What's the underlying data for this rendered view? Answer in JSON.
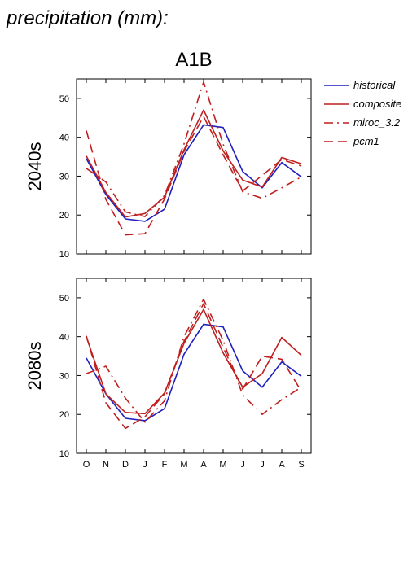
{
  "header": {
    "title": "precipitation (mm):"
  },
  "chart_data": {
    "type": "line",
    "title": "A1B",
    "categories": [
      "O",
      "N",
      "D",
      "J",
      "F",
      "M",
      "A",
      "M",
      "J",
      "J",
      "A",
      "S"
    ],
    "ylim": [
      10,
      55
    ],
    "yticks": [
      10,
      20,
      30,
      40,
      50
    ],
    "grid": false,
    "legend_position": "right",
    "legend": [
      {
        "name": "historical",
        "color": "#1f1fbf",
        "dash": "solid"
      },
      {
        "name": "composite",
        "color": "#bf1f1f",
        "dash": "solid"
      },
      {
        "name": "miroc_3.2",
        "color": "#bf1f1f",
        "dash": "dashdot"
      },
      {
        "name": "pcm1",
        "color": "#bf1f1f",
        "dash": "dashed"
      }
    ],
    "panels": [
      {
        "ylabel": "2040s",
        "series": [
          {
            "name": "historical",
            "values": [
              34.5,
              25.3,
              19.0,
              18.4,
              21.5,
              35.5,
              43.2,
              42.5,
              31.2,
              27.0,
              33.5,
              29.8
            ]
          },
          {
            "name": "composite",
            "values": [
              35.2,
              25.8,
              19.5,
              20.4,
              24.6,
              36.8,
              47.0,
              36.5,
              29.0,
              27.2,
              34.8,
              33.2
            ]
          },
          {
            "name": "miroc_3.2",
            "values": [
              32.0,
              28.5,
              20.8,
              19.6,
              25.0,
              38.3,
              54.2,
              38.2,
              26.0,
              24.3,
              27.0,
              29.8
            ]
          },
          {
            "name": "pcm1",
            "values": [
              41.7,
              24.0,
              14.9,
              15.2,
              24.1,
              36.4,
              45.3,
              35.5,
              26.2,
              30.2,
              34.3,
              32.6
            ]
          }
        ]
      },
      {
        "ylabel": "2080s",
        "series": [
          {
            "name": "historical",
            "values": [
              34.5,
              25.3,
              19.0,
              18.4,
              21.5,
              35.5,
              43.2,
              42.5,
              31.2,
              27.0,
              33.5,
              29.8
            ]
          },
          {
            "name": "composite",
            "values": [
              40.0,
              25.3,
              20.5,
              20.2,
              25.5,
              38.3,
              47.0,
              35.8,
              27.0,
              30.5,
              39.8,
              35.2
            ]
          },
          {
            "name": "miroc_3.2",
            "values": [
              30.5,
              32.4,
              24.2,
              18.0,
              23.5,
              40.0,
              49.6,
              39.0,
              25.0,
              20.0,
              23.8,
              27.0
            ]
          },
          {
            "name": "pcm1",
            "values": [
              40.2,
              23.0,
              16.4,
              19.4,
              25.3,
              38.8,
              48.5,
              37.2,
              26.5,
              35.0,
              34.2,
              26.0
            ]
          }
        ]
      }
    ]
  }
}
